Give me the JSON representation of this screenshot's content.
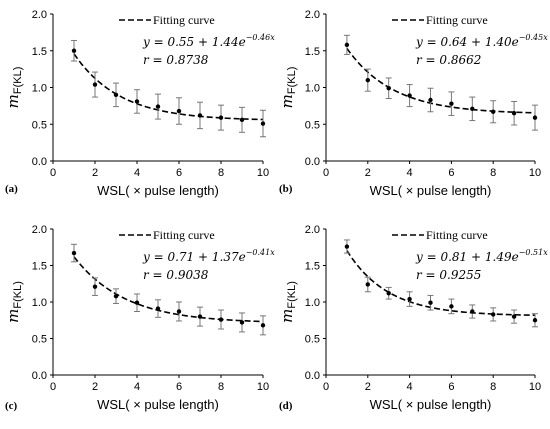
{
  "chart_data": [
    {
      "type": "scatter",
      "panel_label": "(a)",
      "xlabel": "WSL( × pulse length)",
      "ylabel_main": "m",
      "ylabel_sub": "F(KL)",
      "xlim": [
        0,
        10
      ],
      "ylim": [
        0,
        2.0
      ],
      "xticks": [
        "0",
        "2",
        "4",
        "6",
        "8",
        "10"
      ],
      "yticks": [
        "0.0",
        "0.5",
        "1.0",
        "1.5",
        "2.0"
      ],
      "legend": "Fitting curve",
      "eq_lhs": "y = 0.55 + 1.44",
      "eq_base": "e",
      "eq_exp": "−0.46x",
      "r_text": "r = 0.8738",
      "fit": {
        "a": 0.55,
        "b": 1.44,
        "k": 0.46
      },
      "x": [
        1,
        2,
        3,
        4,
        5,
        6,
        7,
        8,
        9,
        10
      ],
      "y": [
        1.5,
        1.04,
        0.9,
        0.81,
        0.74,
        0.68,
        0.62,
        0.59,
        0.56,
        0.51
      ],
      "err": [
        0.14,
        0.17,
        0.16,
        0.16,
        0.17,
        0.18,
        0.18,
        0.17,
        0.17,
        0.18
      ]
    },
    {
      "type": "scatter",
      "panel_label": "(b)",
      "xlabel": "WSL( × pulse length)",
      "ylabel_main": "m",
      "ylabel_sub": "F(KL)",
      "xlim": [
        0,
        10
      ],
      "ylim": [
        0,
        2.0
      ],
      "xticks": [
        "0",
        "2",
        "4",
        "6",
        "8",
        "10"
      ],
      "yticks": [
        "0.0",
        "0.5",
        "1.0",
        "1.5",
        "2.0"
      ],
      "legend": "Fitting curve",
      "eq_lhs": "y = 0.64 + 1.40",
      "eq_base": "e",
      "eq_exp": "−0.45x",
      "r_text": "r = 0.8662",
      "fit": {
        "a": 0.64,
        "b": 1.4,
        "k": 0.45
      },
      "x": [
        1,
        2,
        3,
        4,
        5,
        6,
        7,
        8,
        9,
        10
      ],
      "y": [
        1.58,
        1.1,
        0.99,
        0.89,
        0.83,
        0.78,
        0.71,
        0.67,
        0.65,
        0.59
      ],
      "err": [
        0.13,
        0.15,
        0.14,
        0.15,
        0.16,
        0.16,
        0.16,
        0.15,
        0.16,
        0.17
      ]
    },
    {
      "type": "scatter",
      "panel_label": "(c)",
      "xlabel": "WSL( × pulse length)",
      "ylabel_main": "m",
      "ylabel_sub": "F(KL)",
      "xlim": [
        0,
        10
      ],
      "ylim": [
        0,
        2.0
      ],
      "xticks": [
        "0",
        "2",
        "4",
        "6",
        "8",
        "10"
      ],
      "yticks": [
        "0.0",
        "0.5",
        "1.0",
        "1.5",
        "2.0"
      ],
      "legend": "Fitting curve",
      "eq_lhs": "y = 0.71 + 1.37",
      "eq_base": "e",
      "eq_exp": "−0.41x",
      "r_text": "r = 0.9038",
      "fit": {
        "a": 0.71,
        "b": 1.37,
        "k": 0.41
      },
      "x": [
        1,
        2,
        3,
        4,
        5,
        6,
        7,
        8,
        9,
        10
      ],
      "y": [
        1.67,
        1.21,
        1.08,
        0.99,
        0.91,
        0.87,
        0.8,
        0.76,
        0.72,
        0.68
      ],
      "err": [
        0.12,
        0.12,
        0.1,
        0.12,
        0.12,
        0.13,
        0.13,
        0.13,
        0.13,
        0.13
      ]
    },
    {
      "type": "scatter",
      "panel_label": "(d)",
      "xlabel": "WSL( × pulse length)",
      "ylabel_main": "m",
      "ylabel_sub": "F(KL)",
      "xlim": [
        0,
        10
      ],
      "ylim": [
        0,
        2.0
      ],
      "xticks": [
        "0",
        "2",
        "4",
        "6",
        "8",
        "10"
      ],
      "yticks": [
        "0.0",
        "0.5",
        "1.0",
        "1.5",
        "2.0"
      ],
      "legend": "Fitting curve",
      "eq_lhs": "y = 0.81 + 1.49",
      "eq_base": "e",
      "eq_exp": "−0.51x",
      "r_text": "r = 0.9255",
      "fit": {
        "a": 0.81,
        "b": 1.49,
        "k": 0.51
      },
      "x": [
        1,
        2,
        3,
        4,
        5,
        6,
        7,
        8,
        9,
        10
      ],
      "y": [
        1.76,
        1.24,
        1.12,
        1.04,
        0.99,
        0.94,
        0.87,
        0.83,
        0.8,
        0.75
      ],
      "err": [
        0.09,
        0.1,
        0.08,
        0.1,
        0.1,
        0.1,
        0.09,
        0.09,
        0.09,
        0.09
      ]
    }
  ]
}
